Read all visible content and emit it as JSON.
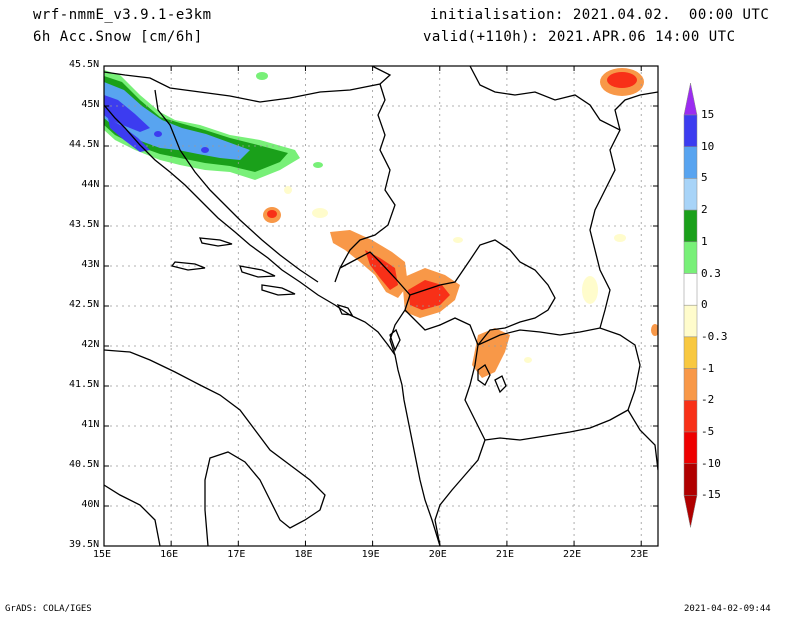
{
  "header": {
    "model": "wrf-nmmE_v3.9.1-e3km",
    "field": "6h Acc.Snow [cm/6h]",
    "init": "initialisation: 2021.04.02.  00:00 UTC",
    "valid": "valid(+110h): 2021.APR.06 14:00 UTC"
  },
  "map": {
    "lon_min": 15,
    "lon_max": 23.25,
    "lat_min": 39.5,
    "lat_max": 45.5,
    "lon_ticks": [
      "15E",
      "16E",
      "17E",
      "18E",
      "19E",
      "20E",
      "21E",
      "22E",
      "23E"
    ],
    "lat_ticks": [
      "45.5N",
      "45N",
      "44.5N",
      "44N",
      "43.5N",
      "43N",
      "42.5N",
      "42N",
      "41.5N",
      "41N",
      "40.5N",
      "40N",
      "39.5N"
    ]
  },
  "colorbar": {
    "labels": [
      "15",
      "10",
      "5",
      "2",
      "1",
      "0.3",
      "0",
      "-0.3",
      "-1",
      "-2",
      "-5",
      "-10",
      "-15"
    ],
    "colors": {
      "c15": "#9b2cf0",
      "c10": "#3c3cf0",
      "c5": "#58a4f0",
      "c2": "#a8d4f8",
      "c1": "#1aa01a",
      "c03": "#78f078",
      "c0": "#ffffff",
      "cm03": "#fffccc",
      "cm1": "#f8c840",
      "cm2": "#f89848",
      "cm5": "#f83018",
      "cm10": "#ee0000",
      "cm15": "#b00000"
    }
  },
  "footer": {
    "left": "GrADS: COLA/IGES",
    "right": "2021-04-02-09:44"
  }
}
